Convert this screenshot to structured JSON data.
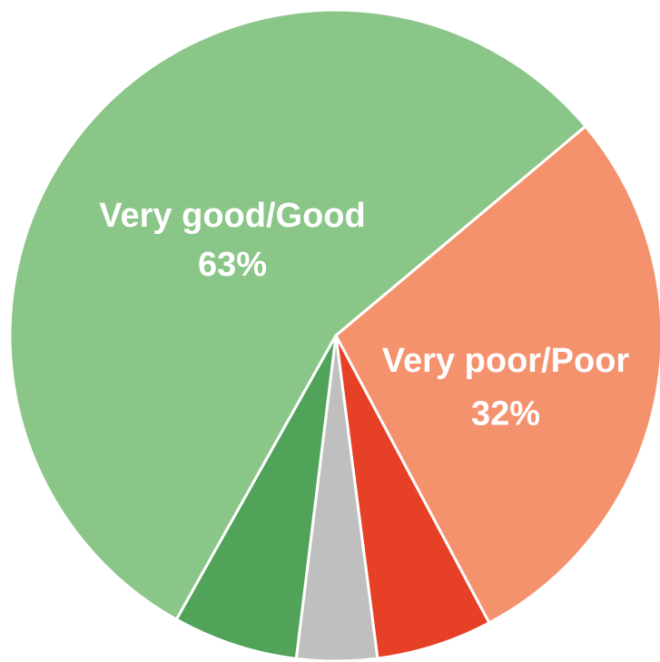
{
  "chart_data": {
    "type": "pie",
    "slices": [
      {
        "value": 63,
        "color": "#8BC689"
      },
      {
        "value": 32,
        "color": "#F4926E"
      },
      {
        "value": 6.5,
        "color": "#E64027"
      },
      {
        "value": 4.5,
        "color": "#BFBFBF"
      },
      {
        "value": 7,
        "color": "#51A35A"
      }
    ],
    "labels": [
      {
        "slice": 0,
        "name": "Very good/Good",
        "value_text": "63%"
      },
      {
        "slice": 1,
        "name": "Very poor/Poor",
        "value_text": "32%"
      }
    ]
  }
}
